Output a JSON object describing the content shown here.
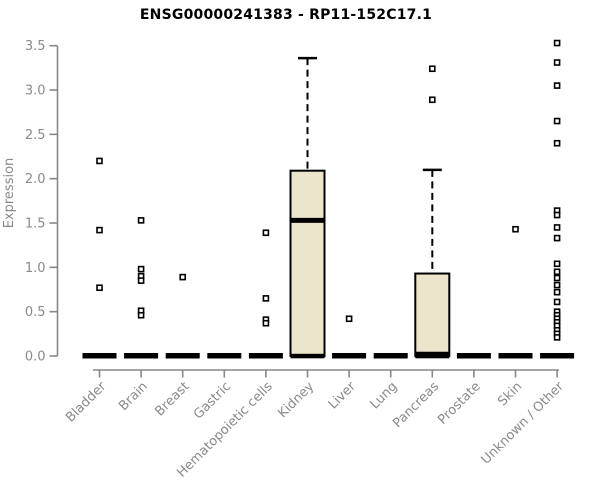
{
  "chart_data": {
    "type": "boxplot",
    "title": "ENSG00000241383 - RP11-152C17.1",
    "ylabel": "Expression",
    "xlabel": "",
    "ylim": [
      0,
      3.5
    ],
    "yticks": [
      "0.0",
      "0.5",
      "1.0",
      "1.5",
      "2.0",
      "2.5",
      "3.0",
      "3.5"
    ],
    "grid": false,
    "legend": false,
    "colors": {
      "box_fill": "#EAE5CB",
      "box_border": "#000000",
      "axis": "#888888",
      "tick_text": "#8a8a8a",
      "title_text": "#000000",
      "outlier_fill": "#ffffff",
      "outlier_border": "#000000"
    },
    "categories": [
      "Bladder",
      "Brain",
      "Breast",
      "Gastric",
      "Hematopoietic cells",
      "Kidney",
      "Liver",
      "Lung",
      "Pancreas",
      "Prostate",
      "Skin",
      "Unknown / Other"
    ],
    "series": [
      {
        "category": "Bladder",
        "flat": true,
        "median": 0,
        "q1": 0,
        "q3": 0,
        "whisker_high": 0,
        "outliers": [
          2.2,
          1.42,
          0.77
        ]
      },
      {
        "category": "Brain",
        "flat": true,
        "median": 0,
        "q1": 0,
        "q3": 0,
        "whisker_high": 0,
        "outliers": [
          1.53,
          0.98,
          0.9,
          0.85,
          0.51,
          0.46
        ]
      },
      {
        "category": "Breast",
        "flat": true,
        "median": 0,
        "q1": 0,
        "q3": 0,
        "whisker_high": 0,
        "outliers": [
          0.89
        ]
      },
      {
        "category": "Gastric",
        "flat": true,
        "median": 0,
        "q1": 0,
        "q3": 0,
        "whisker_high": 0,
        "outliers": []
      },
      {
        "category": "Hematopoietic cells",
        "flat": true,
        "median": 0,
        "q1": 0,
        "q3": 0,
        "whisker_high": 0,
        "outliers": [
          1.39,
          0.65,
          0.41,
          0.37
        ]
      },
      {
        "category": "Kidney",
        "flat": false,
        "median": 1.53,
        "q1": 0,
        "q3": 2.09,
        "whisker_high": 3.36,
        "outliers": []
      },
      {
        "category": "Liver",
        "flat": true,
        "median": 0,
        "q1": 0,
        "q3": 0,
        "whisker_high": 0,
        "outliers": [
          0.42
        ]
      },
      {
        "category": "Lung",
        "flat": true,
        "median": 0,
        "q1": 0,
        "q3": 0,
        "whisker_high": 0,
        "outliers": []
      },
      {
        "category": "Pancreas",
        "flat": false,
        "median": 0.02,
        "q1": 0,
        "q3": 0.93,
        "whisker_high": 2.1,
        "outliers": [
          3.24,
          2.89
        ]
      },
      {
        "category": "Prostate",
        "flat": true,
        "median": 0,
        "q1": 0,
        "q3": 0,
        "whisker_high": 0,
        "outliers": []
      },
      {
        "category": "Skin",
        "flat": true,
        "median": 0,
        "q1": 0,
        "q3": 0,
        "whisker_high": 0,
        "outliers": [
          1.43
        ]
      },
      {
        "category": "Unknown / Other",
        "flat": true,
        "median": 0,
        "q1": 0,
        "q3": 0,
        "whisker_high": 0,
        "outliers": [
          3.53,
          3.31,
          3.05,
          2.65,
          2.4,
          1.64,
          1.59,
          1.45,
          1.33,
          1.04,
          0.95,
          0.88,
          0.8,
          0.72,
          0.61,
          0.5,
          0.46,
          0.42,
          0.38,
          0.34,
          0.29,
          0.25,
          0.21
        ]
      }
    ]
  }
}
